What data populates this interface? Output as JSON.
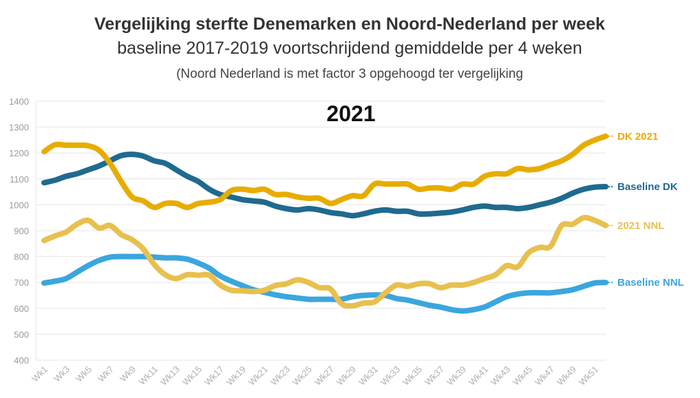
{
  "chart_data": {
    "type": "line",
    "title": "Vergelijking sterfte Denemarken en Noord-Nederland per week",
    "subtitle": "baseline 2017-2019 voortschrijdend gemiddelde per 4 weken",
    "note": "(Noord Nederland is met factor 3 opgehoogd ter vergelijking",
    "annotation": "2021",
    "ylim": [
      400,
      1400
    ],
    "yticks": [
      400,
      500,
      600,
      700,
      800,
      900,
      1000,
      1100,
      1200,
      1300,
      1400
    ],
    "grid": true,
    "legend_position": "right, at line ends",
    "x": [
      "Wk1",
      "Wk2",
      "Wk3",
      "Wk4",
      "Wk5",
      "Wk6",
      "Wk7",
      "Wk8",
      "Wk9",
      "Wk10",
      "Wk11",
      "Wk12",
      "Wk13",
      "Wk14",
      "Wk15",
      "Wk16",
      "Wk17",
      "Wk18",
      "Wk19",
      "Wk20",
      "Wk21",
      "Wk22",
      "Wk23",
      "Wk24",
      "Wk25",
      "Wk26",
      "Wk27",
      "Wk28",
      "Wk29",
      "Wk30",
      "Wk31",
      "Wk32",
      "Wk33",
      "Wk34",
      "Wk35",
      "Wk36",
      "Wk37",
      "Wk38",
      "Wk39",
      "Wk40",
      "Wk41",
      "Wk42",
      "Wk43",
      "Wk44",
      "Wk45",
      "Wk46",
      "Wk47",
      "Wk48",
      "Wk49",
      "Wk50",
      "Wk51",
      "Wk52"
    ],
    "xtick_labels": [
      "Wk1",
      "Wk3",
      "Wk5",
      "Wk7",
      "Wk9",
      "Wk11",
      "Wk13",
      "Wk15",
      "Wk17",
      "Wk19",
      "Wk21",
      "Wk23",
      "Wk25",
      "Wk27",
      "Wk29",
      "Wk31",
      "Wk33",
      "Wk35",
      "Wk37",
      "Wk39",
      "Wk41",
      "Wk43",
      "Wk45",
      "Wk47",
      "Wk49",
      "Wk51"
    ],
    "series": [
      {
        "name": "DK 2021",
        "color": "#e8ac00",
        "values": [
          1205,
          1232,
          1230,
          1230,
          1228,
          1210,
          1160,
          1090,
          1030,
          1015,
          990,
          1005,
          1005,
          990,
          1005,
          1010,
          1020,
          1055,
          1060,
          1055,
          1060,
          1040,
          1040,
          1030,
          1025,
          1025,
          1005,
          1020,
          1035,
          1035,
          1080,
          1080,
          1080,
          1080,
          1060,
          1065,
          1065,
          1060,
          1080,
          1080,
          1110,
          1120,
          1120,
          1140,
          1135,
          1140,
          1155,
          1170,
          1195,
          1230,
          1250,
          1265
        ]
      },
      {
        "name": "Baseline DK",
        "color": "#1f6a8f",
        "values": [
          1085,
          1095,
          1110,
          1120,
          1135,
          1150,
          1170,
          1190,
          1195,
          1188,
          1170,
          1160,
          1135,
          1110,
          1090,
          1060,
          1040,
          1030,
          1020,
          1015,
          1010,
          995,
          985,
          980,
          985,
          980,
          970,
          965,
          958,
          965,
          975,
          980,
          975,
          975,
          965,
          965,
          968,
          972,
          980,
          990,
          995,
          990,
          990,
          985,
          990,
          1000,
          1010,
          1025,
          1045,
          1060,
          1068,
          1070
        ]
      },
      {
        "name": "2021 NNL",
        "color": "#e8c04e",
        "values": [
          862,
          880,
          895,
          925,
          940,
          910,
          920,
          885,
          865,
          830,
          770,
          730,
          715,
          730,
          728,
          728,
          690,
          670,
          668,
          665,
          670,
          688,
          695,
          710,
          700,
          680,
          675,
          618,
          610,
          620,
          625,
          660,
          690,
          685,
          695,
          695,
          680,
          690,
          690,
          700,
          715,
          730,
          765,
          760,
          815,
          835,
          840,
          920,
          925,
          950,
          940,
          920
        ]
      },
      {
        "name": "Baseline NNL",
        "color": "#3ba6dd",
        "values": [
          698,
          705,
          715,
          740,
          765,
          785,
          798,
          800,
          800,
          800,
          798,
          795,
          795,
          790,
          775,
          755,
          725,
          705,
          688,
          672,
          662,
          652,
          645,
          640,
          635,
          635,
          635,
          635,
          645,
          650,
          652,
          650,
          638,
          632,
          622,
          612,
          605,
          595,
          590,
          595,
          605,
          625,
          645,
          655,
          660,
          660,
          660,
          665,
          672,
          685,
          698,
          700
        ]
      }
    ]
  }
}
